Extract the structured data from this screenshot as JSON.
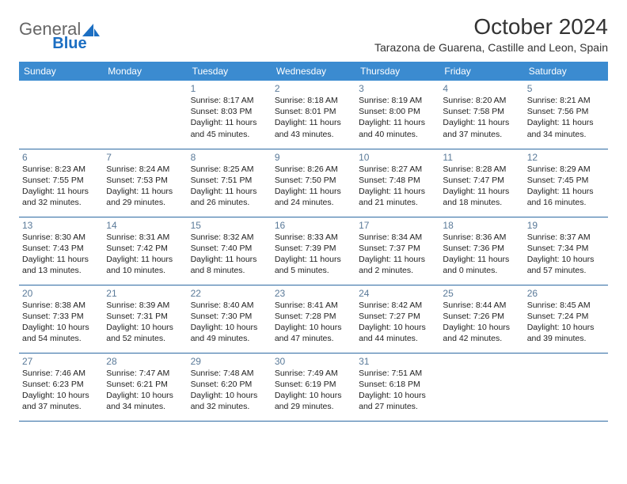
{
  "logo": {
    "text1": "General",
    "text2": "Blue"
  },
  "title": "October 2024",
  "subtitle": "Tarazona de Guarena, Castille and Leon, Spain",
  "colors": {
    "header_bg": "#3b8bd0",
    "header_text": "#ffffff",
    "daynum": "#5a7a99",
    "cell_border": "#2d6aa3",
    "logo_blue": "#1b6ec2",
    "logo_gray": "#666666",
    "body_text": "#222222",
    "background": "#ffffff"
  },
  "weekdays": [
    "Sunday",
    "Monday",
    "Tuesday",
    "Wednesday",
    "Thursday",
    "Friday",
    "Saturday"
  ],
  "weeks": [
    [
      null,
      null,
      {
        "n": "1",
        "sr": "8:17 AM",
        "ss": "8:03 PM",
        "dl": "11 hours and 45 minutes."
      },
      {
        "n": "2",
        "sr": "8:18 AM",
        "ss": "8:01 PM",
        "dl": "11 hours and 43 minutes."
      },
      {
        "n": "3",
        "sr": "8:19 AM",
        "ss": "8:00 PM",
        "dl": "11 hours and 40 minutes."
      },
      {
        "n": "4",
        "sr": "8:20 AM",
        "ss": "7:58 PM",
        "dl": "11 hours and 37 minutes."
      },
      {
        "n": "5",
        "sr": "8:21 AM",
        "ss": "7:56 PM",
        "dl": "11 hours and 34 minutes."
      }
    ],
    [
      {
        "n": "6",
        "sr": "8:23 AM",
        "ss": "7:55 PM",
        "dl": "11 hours and 32 minutes."
      },
      {
        "n": "7",
        "sr": "8:24 AM",
        "ss": "7:53 PM",
        "dl": "11 hours and 29 minutes."
      },
      {
        "n": "8",
        "sr": "8:25 AM",
        "ss": "7:51 PM",
        "dl": "11 hours and 26 minutes."
      },
      {
        "n": "9",
        "sr": "8:26 AM",
        "ss": "7:50 PM",
        "dl": "11 hours and 24 minutes."
      },
      {
        "n": "10",
        "sr": "8:27 AM",
        "ss": "7:48 PM",
        "dl": "11 hours and 21 minutes."
      },
      {
        "n": "11",
        "sr": "8:28 AM",
        "ss": "7:47 PM",
        "dl": "11 hours and 18 minutes."
      },
      {
        "n": "12",
        "sr": "8:29 AM",
        "ss": "7:45 PM",
        "dl": "11 hours and 16 minutes."
      }
    ],
    [
      {
        "n": "13",
        "sr": "8:30 AM",
        "ss": "7:43 PM",
        "dl": "11 hours and 13 minutes."
      },
      {
        "n": "14",
        "sr": "8:31 AM",
        "ss": "7:42 PM",
        "dl": "11 hours and 10 minutes."
      },
      {
        "n": "15",
        "sr": "8:32 AM",
        "ss": "7:40 PM",
        "dl": "11 hours and 8 minutes."
      },
      {
        "n": "16",
        "sr": "8:33 AM",
        "ss": "7:39 PM",
        "dl": "11 hours and 5 minutes."
      },
      {
        "n": "17",
        "sr": "8:34 AM",
        "ss": "7:37 PM",
        "dl": "11 hours and 2 minutes."
      },
      {
        "n": "18",
        "sr": "8:36 AM",
        "ss": "7:36 PM",
        "dl": "11 hours and 0 minutes."
      },
      {
        "n": "19",
        "sr": "8:37 AM",
        "ss": "7:34 PM",
        "dl": "10 hours and 57 minutes."
      }
    ],
    [
      {
        "n": "20",
        "sr": "8:38 AM",
        "ss": "7:33 PM",
        "dl": "10 hours and 54 minutes."
      },
      {
        "n": "21",
        "sr": "8:39 AM",
        "ss": "7:31 PM",
        "dl": "10 hours and 52 minutes."
      },
      {
        "n": "22",
        "sr": "8:40 AM",
        "ss": "7:30 PM",
        "dl": "10 hours and 49 minutes."
      },
      {
        "n": "23",
        "sr": "8:41 AM",
        "ss": "7:28 PM",
        "dl": "10 hours and 47 minutes."
      },
      {
        "n": "24",
        "sr": "8:42 AM",
        "ss": "7:27 PM",
        "dl": "10 hours and 44 minutes."
      },
      {
        "n": "25",
        "sr": "8:44 AM",
        "ss": "7:26 PM",
        "dl": "10 hours and 42 minutes."
      },
      {
        "n": "26",
        "sr": "8:45 AM",
        "ss": "7:24 PM",
        "dl": "10 hours and 39 minutes."
      }
    ],
    [
      {
        "n": "27",
        "sr": "7:46 AM",
        "ss": "6:23 PM",
        "dl": "10 hours and 37 minutes."
      },
      {
        "n": "28",
        "sr": "7:47 AM",
        "ss": "6:21 PM",
        "dl": "10 hours and 34 minutes."
      },
      {
        "n": "29",
        "sr": "7:48 AM",
        "ss": "6:20 PM",
        "dl": "10 hours and 32 minutes."
      },
      {
        "n": "30",
        "sr": "7:49 AM",
        "ss": "6:19 PM",
        "dl": "10 hours and 29 minutes."
      },
      {
        "n": "31",
        "sr": "7:51 AM",
        "ss": "6:18 PM",
        "dl": "10 hours and 27 minutes."
      },
      null,
      null
    ]
  ],
  "labels": {
    "sunrise": "Sunrise:",
    "sunset": "Sunset:",
    "daylight": "Daylight:"
  }
}
